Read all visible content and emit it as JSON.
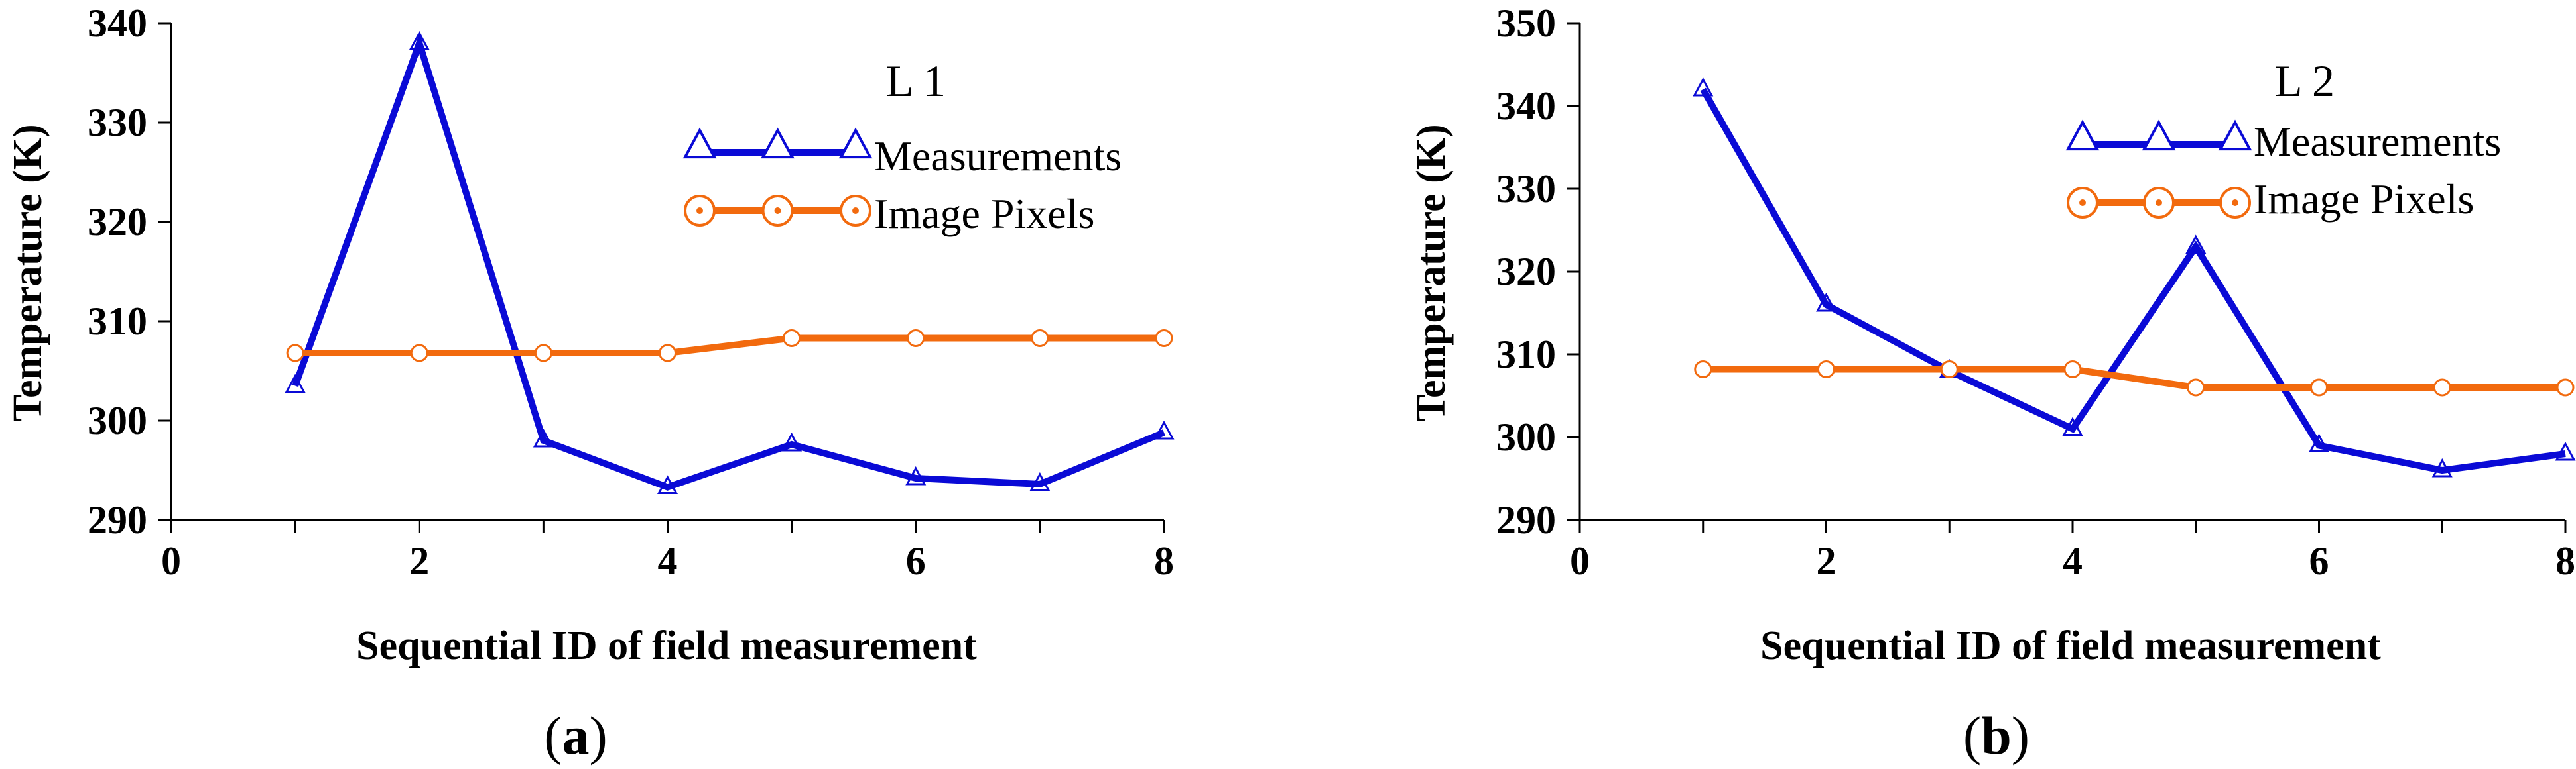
{
  "chart_data": [
    {
      "type": "line",
      "panel_label": {
        "open": "(",
        "letter": "a",
        "close": ")"
      },
      "title": "L 1",
      "xlabel": "Sequential ID of field measurement",
      "ylabel": "Temperature (K)",
      "xlim": [
        0,
        8
      ],
      "ylim": [
        290,
        340
      ],
      "x_ticks": [
        "0",
        "2",
        "4",
        "6",
        "8"
      ],
      "y_ticks": [
        "290",
        "300",
        "310",
        "320",
        "330",
        "340"
      ],
      "x": [
        1,
        2,
        3,
        4,
        5,
        6,
        7,
        8
      ],
      "legend_position": "top-right",
      "grid": false,
      "series": [
        {
          "name": "Measurements",
          "marker": "triangle",
          "color": "#0a0ad6",
          "values": [
            303.5,
            338,
            298,
            293.3,
            297.6,
            294.2,
            293.6,
            298.8
          ]
        },
        {
          "name": "Image Pixels",
          "marker": "circle",
          "color": "#f26a0e",
          "values": [
            306.8,
            306.8,
            306.8,
            306.8,
            308.3,
            308.3,
            308.3,
            308.3
          ]
        }
      ]
    },
    {
      "type": "line",
      "panel_label": {
        "open": "(",
        "letter": "b",
        "close": ")"
      },
      "title": "L 2",
      "xlabel": "Sequential ID of field measurement",
      "ylabel": "Temperature (K)",
      "xlim": [
        0,
        8
      ],
      "ylim": [
        290,
        350
      ],
      "x_ticks": [
        "0",
        "2",
        "4",
        "6",
        "8"
      ],
      "y_ticks": [
        "290",
        "300",
        "310",
        "320",
        "330",
        "340",
        "350"
      ],
      "x": [
        1,
        2,
        3,
        4,
        5,
        6,
        7,
        8
      ],
      "legend_position": "top-right",
      "grid": false,
      "series": [
        {
          "name": "Measurements",
          "marker": "triangle",
          "color": "#0a0ad6",
          "values": [
            342,
            316,
            308,
            301,
            323,
            299,
            296,
            298
          ]
        },
        {
          "name": "Image Pixels",
          "marker": "circle",
          "color": "#f26a0e",
          "values": [
            308.2,
            308.2,
            308.2,
            308.2,
            306,
            306,
            306,
            306
          ]
        }
      ]
    }
  ]
}
